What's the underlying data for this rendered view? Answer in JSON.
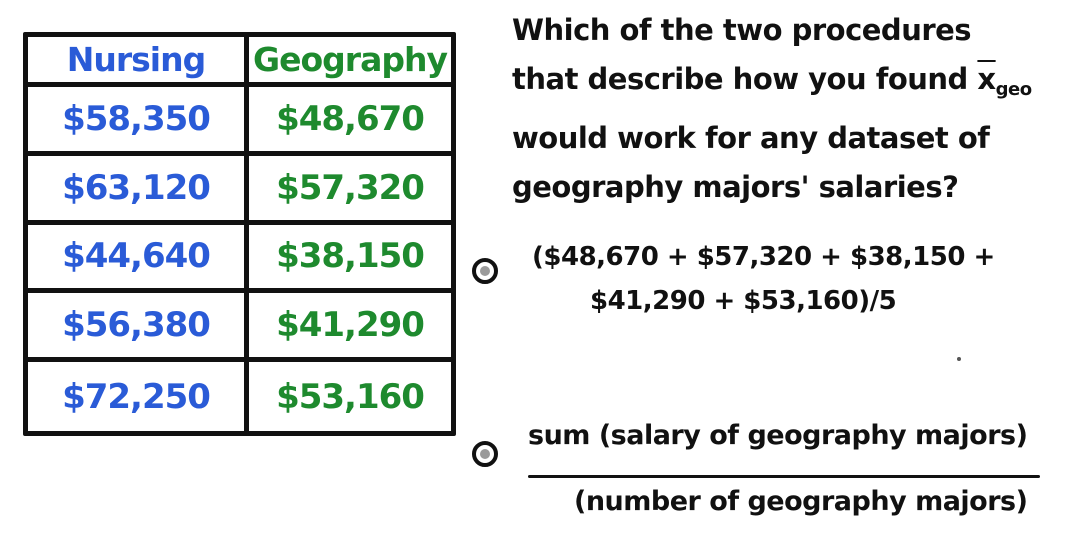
{
  "table": {
    "headers": {
      "nursing": "Nursing",
      "geography": "Geography"
    },
    "rows": [
      {
        "nursing": "$58,350",
        "geography": "$48,670"
      },
      {
        "nursing": "$63,120",
        "geography": "$57,320"
      },
      {
        "nursing": "$44,640",
        "geography": "$38,150"
      },
      {
        "nursing": "$56,380",
        "geography": "$41,290"
      },
      {
        "nursing": "$72,250",
        "geography": "$53,160"
      }
    ]
  },
  "question": {
    "line1": "Which of the two procedures",
    "line2_prefix": "that describe how you found",
    "xbar": "x",
    "subscript": "geo",
    "line3": "would work for any dataset of",
    "line4": "geography majors' salaries?"
  },
  "options": {
    "option1": {
      "line1": "($48,670 + $57,320 + $38,150 +",
      "line2": "$41,290 + $53,160)/5"
    },
    "option2": {
      "numerator": "sum (salary of geography majors)",
      "denominator": "(number of geography majors)"
    }
  },
  "colors": {
    "nursing": "#2a5bd7",
    "geography": "#1e8a2e",
    "ink": "#111111"
  }
}
